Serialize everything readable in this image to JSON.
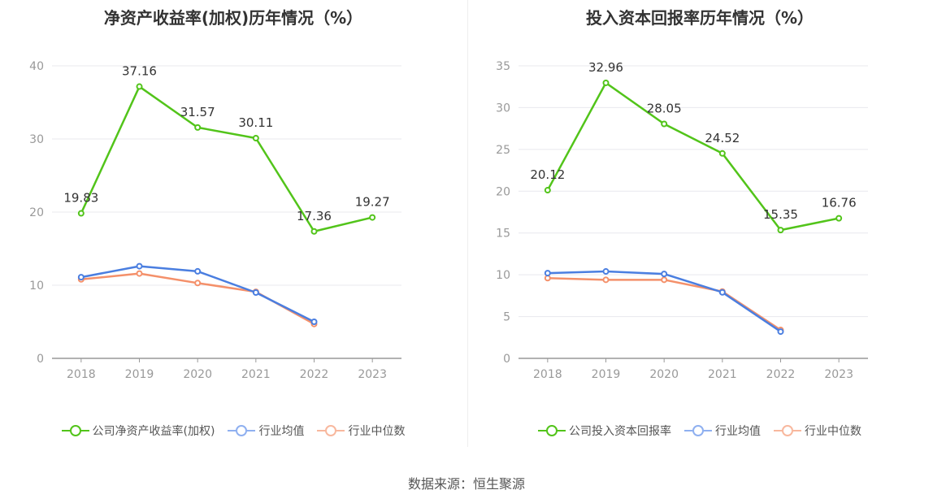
{
  "source": "数据来源：恒生聚源",
  "colors": {
    "company": "#52c41a",
    "avg": "#4a7ee0",
    "median": "#f4906a",
    "axis": "#999999",
    "grid": "#e8e8ee",
    "label": "#333333"
  },
  "chart_data": [
    {
      "type": "line",
      "title": "净资产收益率(加权)历年情况（%）",
      "categories": [
        "2018",
        "2019",
        "2020",
        "2021",
        "2022",
        "2023"
      ],
      "ylim": [
        0,
        40
      ],
      "yticks": [
        "0",
        "10",
        "20",
        "30",
        "40"
      ],
      "grid": true,
      "legend_position": "bottom",
      "series": [
        {
          "name": "公司净资产收益率(加权)",
          "color": "#52c41a",
          "values": [
            19.83,
            37.16,
            31.57,
            30.11,
            17.36,
            19.27
          ],
          "labels": [
            "19.83",
            "37.16",
            "31.57",
            "30.11",
            "17.36",
            "19.27"
          ]
        },
        {
          "name": "行业均值",
          "color": "#4a7ee0",
          "values": [
            11.1,
            12.6,
            11.9,
            9.0,
            5.0,
            null
          ]
        },
        {
          "name": "行业中位数",
          "color": "#f4906a",
          "values": [
            10.8,
            11.6,
            10.3,
            9.1,
            4.7,
            null
          ]
        }
      ]
    },
    {
      "type": "line",
      "title": "投入资本回报率历年情况（%）",
      "categories": [
        "2018",
        "2019",
        "2020",
        "2021",
        "2022",
        "2023"
      ],
      "ylim": [
        0,
        35
      ],
      "yticks": [
        "0",
        "5",
        "10",
        "15",
        "20",
        "25",
        "30",
        "35"
      ],
      "grid": true,
      "legend_position": "bottom",
      "series": [
        {
          "name": "公司投入资本回报率",
          "color": "#52c41a",
          "values": [
            20.12,
            32.96,
            28.05,
            24.52,
            15.35,
            16.76
          ],
          "labels": [
            "20.12",
            "32.96",
            "28.05",
            "24.52",
            "15.35",
            "16.76"
          ]
        },
        {
          "name": "行业均值",
          "color": "#4a7ee0",
          "values": [
            10.2,
            10.4,
            10.1,
            7.9,
            3.2,
            null
          ]
        },
        {
          "name": "行业中位数",
          "color": "#f4906a",
          "values": [
            9.6,
            9.4,
            9.4,
            8.0,
            3.4,
            null
          ]
        }
      ]
    }
  ]
}
